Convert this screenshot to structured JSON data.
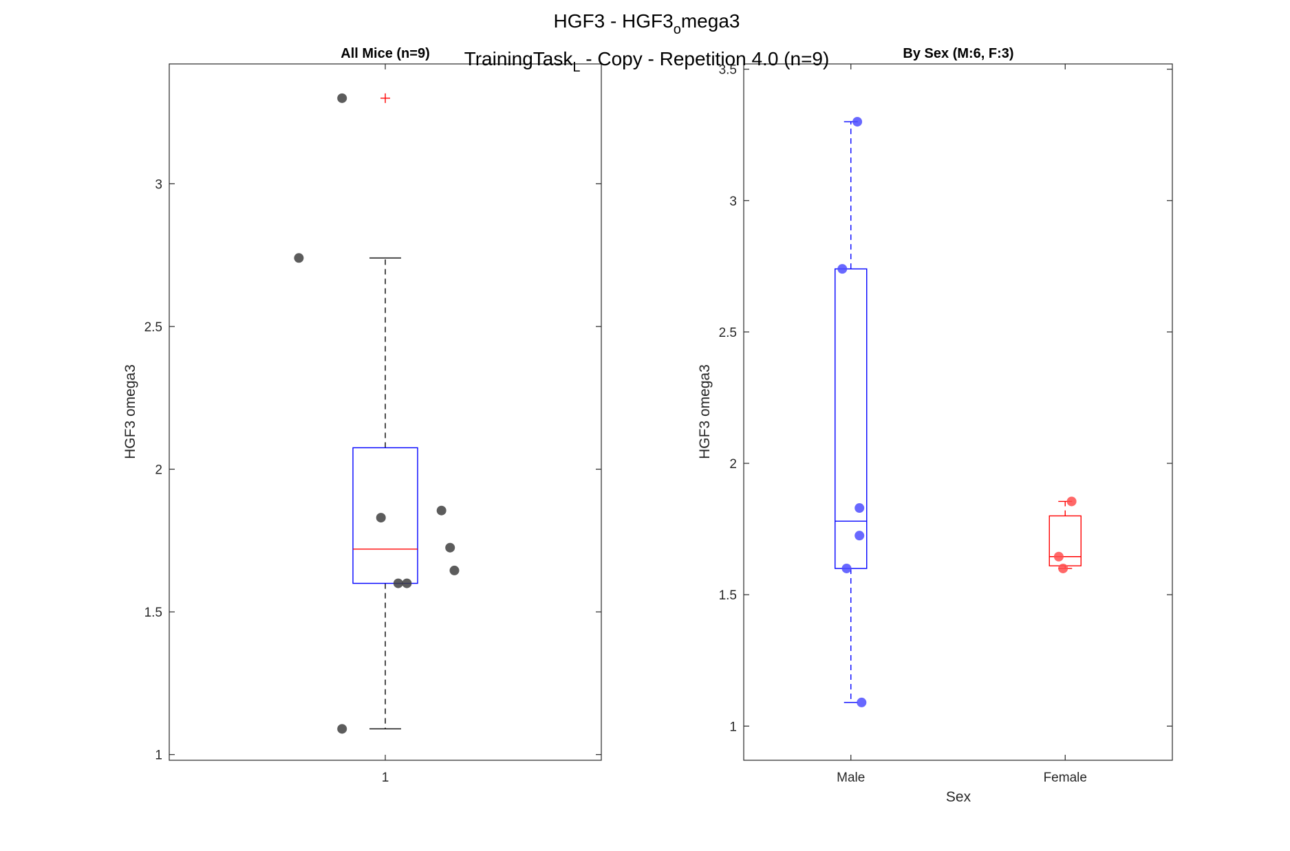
{
  "figure": {
    "title_main": "HGF3 - HGF3",
    "title_sub": "o",
    "title_rest": "mega3",
    "subtitle_main": "TrainingTask",
    "subtitle_sub": "L",
    "subtitle_rest": " - Copy - Repetition 4.0 (n=9)"
  },
  "colors": {
    "all_box": "#0000ff",
    "all_median": "#ff0000",
    "all_whisker": "#000000",
    "all_points": "#404040",
    "outlier": "#ff0000",
    "male": "#0000ff",
    "female": "#ff0000",
    "male_points": "#4d4dff",
    "female_points": "#ff4d4d"
  },
  "chart_data": [
    {
      "type": "box",
      "title": "All Mice (n=9)",
      "xlabel": "",
      "ylabel": "HGF3 omega3",
      "ylim": [
        0.98,
        3.42
      ],
      "yticks": [
        1,
        1.5,
        2,
        2.5,
        3
      ],
      "ytick_labels": [
        "1",
        "1.5",
        "2",
        "2.5",
        "3"
      ],
      "categories": [
        "1"
      ],
      "box": {
        "q1": 1.6,
        "median": 1.72,
        "q3": 2.075,
        "whisker_low": 1.09,
        "whisker_high": 2.74
      },
      "outliers": [
        3.3
      ],
      "points": [
        {
          "x_offset": -0.1,
          "y": 3.3
        },
        {
          "x_offset": -0.2,
          "y": 2.74
        },
        {
          "x_offset": 0.13,
          "y": 1.855
        },
        {
          "x_offset": -0.01,
          "y": 1.83
        },
        {
          "x_offset": 0.15,
          "y": 1.725
        },
        {
          "x_offset": 0.16,
          "y": 1.645
        },
        {
          "x_offset": 0.03,
          "y": 1.6
        },
        {
          "x_offset": 0.05,
          "y": 1.6
        },
        {
          "x_offset": -0.1,
          "y": 1.09
        }
      ]
    },
    {
      "type": "box",
      "title": "By Sex (M:6, F:3)",
      "xlabel": "Sex",
      "ylabel": "HGF3 omega3",
      "ylim": [
        0.87,
        3.52
      ],
      "yticks": [
        1,
        1.5,
        2,
        2.5,
        3,
        3.5
      ],
      "ytick_labels": [
        "1",
        "1.5",
        "2",
        "2.5",
        "3",
        "3.5"
      ],
      "categories": [
        "Male",
        "Female"
      ],
      "boxes": [
        {
          "name": "Male",
          "q1": 1.6,
          "median": 1.78,
          "q3": 2.74,
          "whisker_low": 1.09,
          "whisker_high": 3.3
        },
        {
          "name": "Female",
          "q1": 1.61,
          "median": 1.645,
          "q3": 1.8,
          "whisker_low": 1.6,
          "whisker_high": 1.855
        }
      ],
      "points": [
        {
          "group": 0,
          "x_offset": 0.03,
          "y": 3.3
        },
        {
          "group": 0,
          "x_offset": -0.04,
          "y": 2.74
        },
        {
          "group": 0,
          "x_offset": 0.04,
          "y": 1.83
        },
        {
          "group": 0,
          "x_offset": 0.04,
          "y": 1.725
        },
        {
          "group": 0,
          "x_offset": -0.02,
          "y": 1.6
        },
        {
          "group": 0,
          "x_offset": 0.05,
          "y": 1.09
        },
        {
          "group": 1,
          "x_offset": 0.03,
          "y": 1.855
        },
        {
          "group": 1,
          "x_offset": -0.03,
          "y": 1.645
        },
        {
          "group": 1,
          "x_offset": -0.01,
          "y": 1.6
        }
      ]
    }
  ]
}
